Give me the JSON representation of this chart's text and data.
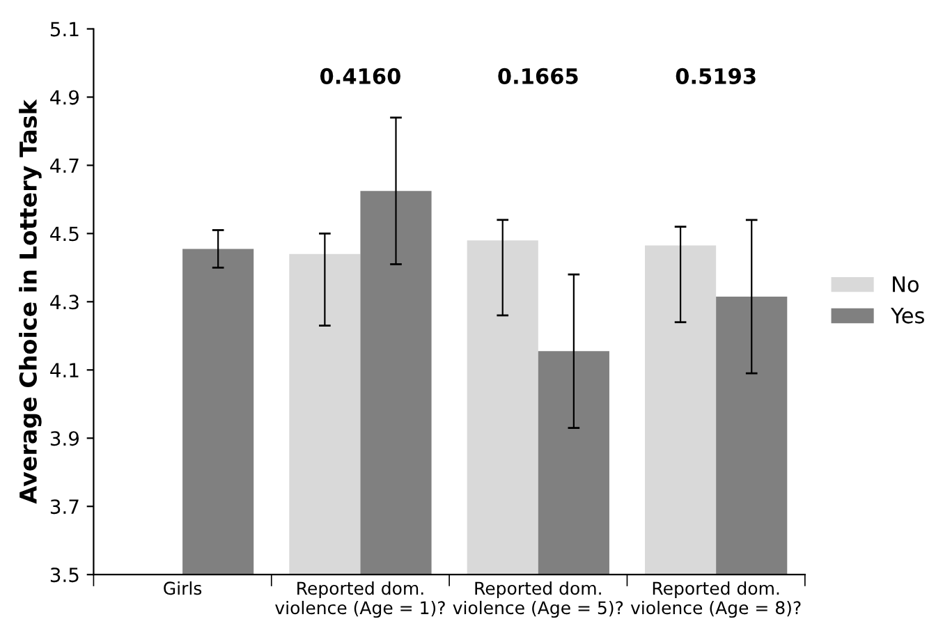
{
  "chart_data": {
    "type": "bar",
    "ylabel": "Average Choice in Lottery Task",
    "categories": [
      "Girls",
      "Reported dom.\nviolence (Age = 1)?",
      "Reported dom.\nviolence (Age = 5)?",
      "Reported dom.\nviolence (Age = 8)?"
    ],
    "series": [
      {
        "name": "No",
        "color": "#d9d9d9",
        "values": [
          null,
          4.44,
          4.48,
          4.465
        ],
        "errors": [
          null,
          [
            4.23,
            4.5
          ],
          [
            4.26,
            4.54
          ],
          [
            4.24,
            4.52
          ]
        ]
      },
      {
        "name": "Yes",
        "color": "#808080",
        "values": [
          4.455,
          4.625,
          4.155,
          4.315
        ],
        "errors": [
          [
            4.4,
            4.51
          ],
          [
            4.41,
            4.84
          ],
          [
            3.93,
            4.38
          ],
          [
            4.09,
            4.54
          ]
        ]
      }
    ],
    "annotations": [
      "0.4160",
      "0.1665",
      "0.5193"
    ],
    "ylim": [
      3.5,
      5.1
    ],
    "yticks": [
      3.5,
      3.7,
      3.9,
      4.1,
      4.3,
      4.5,
      4.7,
      4.9,
      5.1
    ],
    "legend": "right"
  }
}
